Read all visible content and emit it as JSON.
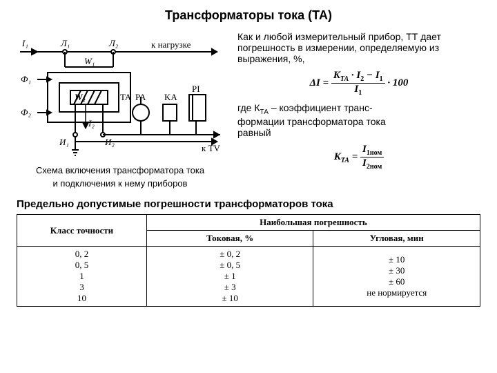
{
  "title": "Трансформаторы тока (ТА)",
  "intro": "Как и любой измерительный прибор, ТТ дает погрешность в измерении, определяемую из выражения, %,",
  "formula1_html": "Δ<i>I</i> = <span class='frac'><span class='num'><i>K</i><span class='subi'>TA</span> · <i>I</i><span class='sub'>2</span> − <i>I</i><span class='sub'>1</span></span><span class='den'><i>I</i><span class='sub'>1</span></span></span> · 100",
  "explain_html": "где К<span class='sub'>ТА</span> – коэффициент транс-<br>формации трансформатора тока<br>равный",
  "formula2_html": "<i>K</i><span class='subi'>TA</span> = <span class='frac'><span class='num'><i>I</i><span class='sub'>1ном</span></span><span class='den'><i>I</i><span class='sub'>2ном</span></span></span>",
  "caption1": "Схема включения трансформатора тока",
  "caption2": "и подключения к нему приборов",
  "table_title": "Предельно допустимые погрешности трансформаторов тока",
  "table": {
    "col1_header": "Класс точности",
    "col2_header": "Наибольшая погрешность",
    "sub1": "Токовая, %",
    "sub2": "Угловая, мин",
    "rows": [
      {
        "c": "0, 2",
        "t": "± 0, 2",
        "a": "± 10"
      },
      {
        "c": "0, 5",
        "t": "± 0, 5",
        "a": "± 30"
      },
      {
        "c": "1",
        "t": "± 1",
        "a": "± 60"
      },
      {
        "c": "3",
        "t": "± 3",
        "a": "не нормируется"
      },
      {
        "c": "10",
        "t": "± 10",
        "a": ""
      }
    ]
  },
  "diagram": {
    "labels": {
      "I1": "I₁",
      "L1": "Л₁",
      "L2": "Л₂",
      "load": "к нагрузке",
      "W1": "W₁",
      "W2": "W₂",
      "F1": "Ф₁",
      "F2": "Ф₂",
      "TA": "TA",
      "PA": "PA",
      "KA": "KA",
      "PI": "PI",
      "I1b": "И₁",
      "I2b": "И₂",
      "i2": "I₂",
      "kTV": "к TV"
    }
  }
}
